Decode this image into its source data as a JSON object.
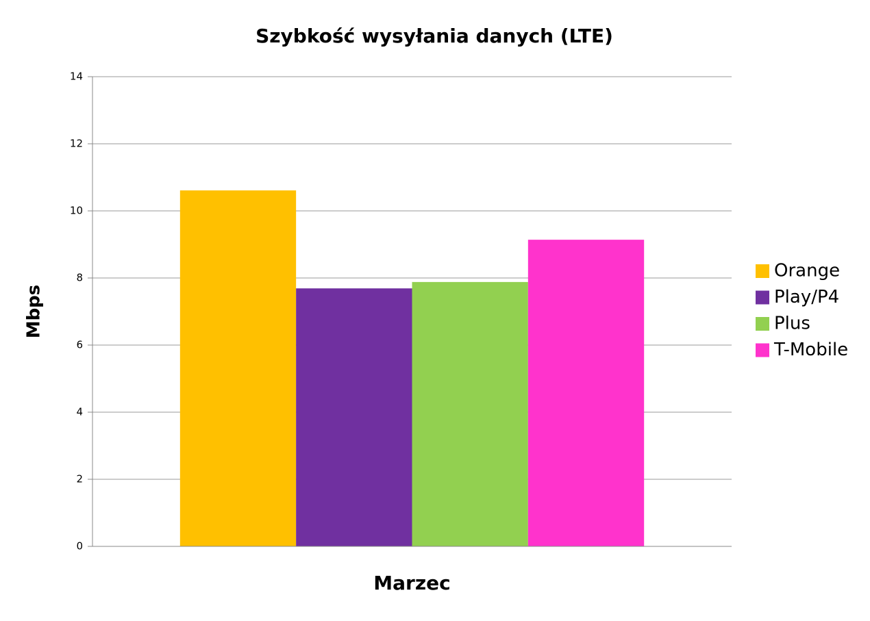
{
  "chart_data": {
    "type": "bar",
    "title": "Szybkość wysyłania danych (LTE)",
    "ylabel": "Mbps",
    "categories": [
      "Marzec"
    ],
    "series": [
      {
        "name": "Orange",
        "color": "#ffc000",
        "values": [
          10.61
        ]
      },
      {
        "name": "Play/P4",
        "color": "#7030a0",
        "values": [
          7.69
        ]
      },
      {
        "name": "Plus",
        "color": "#92d050",
        "values": [
          7.88
        ]
      },
      {
        "name": "T-Mobile",
        "color": "#ff33cc",
        "values": [
          9.14
        ]
      }
    ],
    "ylim": [
      0,
      14
    ],
    "yticks": [
      0,
      2,
      4,
      6,
      8,
      10,
      12,
      14
    ],
    "grid": true,
    "legend": "right"
  }
}
